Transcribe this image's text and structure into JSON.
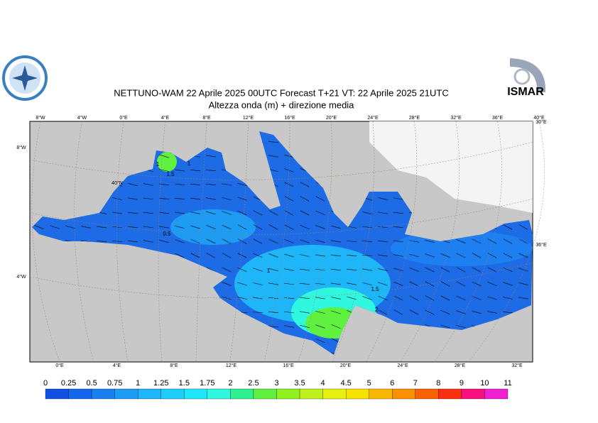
{
  "header": {
    "title": "NETTUNO-WAM  22   Aprile  2025 00UTC Forecast T+21 VT: 22   Aprile  2025 21UTC",
    "subtitle": "Altezza onda (m) + direzione media",
    "logo_right": "ISMAR"
  },
  "graticule": {
    "top": [
      "8°W",
      "4°W",
      "0°E",
      "4°E",
      "8°E",
      "12°E",
      "16°E",
      "20°E",
      "24°E",
      "28°E",
      "32°E",
      "36°E",
      "40°E"
    ],
    "bottom": [
      "0°E",
      "4°E",
      "8°E",
      "12°E",
      "16°E",
      "20°E",
      "24°E",
      "28°E",
      "32°E"
    ],
    "left": [
      "8°W",
      "40°N",
      "4°W"
    ],
    "right": [
      "30°E",
      "36°E"
    ]
  },
  "contour_labels": [
    "1",
    "1.5",
    "1",
    "0.5",
    "1",
    "1.5",
    "2"
  ],
  "colorbar": {
    "levels": [
      0,
      0.25,
      0.5,
      0.75,
      1,
      1.25,
      1.5,
      1.75,
      2,
      2.5,
      3,
      3.5,
      4,
      4.5,
      5,
      6,
      7,
      8,
      9,
      10,
      11
    ],
    "colors": [
      "#1050e0",
      "#1466ec",
      "#1a80f0",
      "#1e9cf4",
      "#1eb6f8",
      "#1ecefa",
      "#20e6fc",
      "#30f8e0",
      "#30f090",
      "#60f040",
      "#90f020",
      "#c0f020",
      "#e8f010",
      "#f8e000",
      "#f8b800",
      "#f89000",
      "#f86000",
      "#f83010",
      "#f81080",
      "#f020d0"
    ]
  }
}
